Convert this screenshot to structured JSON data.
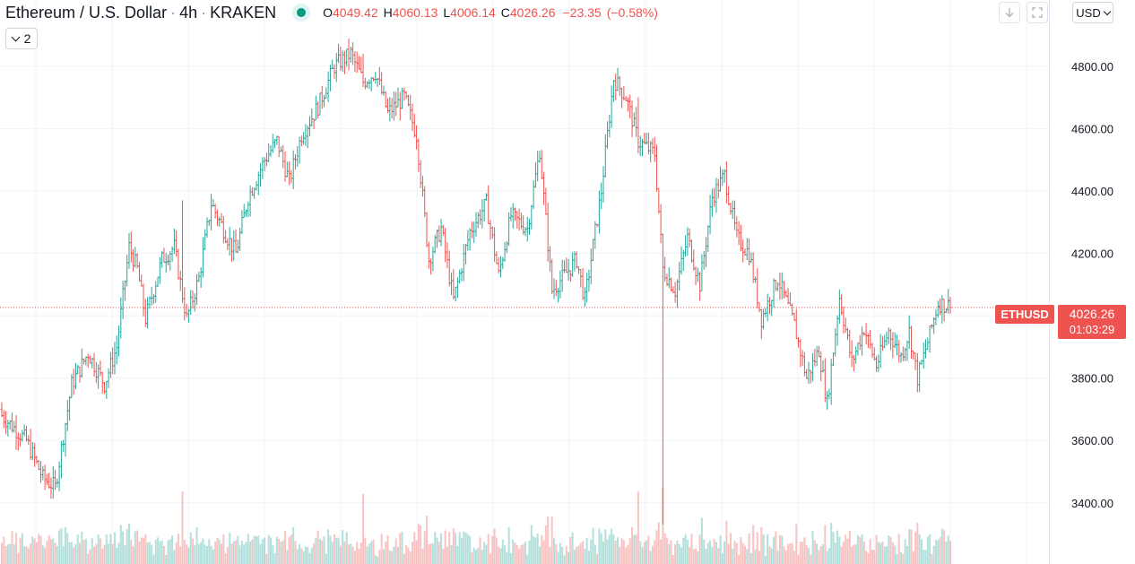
{
  "header": {
    "symbol": "Ethereum / U.S. Dollar",
    "interval": "4h",
    "exchange": "KRAKEN",
    "sep": "·"
  },
  "ohlc": {
    "o_label": "O",
    "o": "4049.42",
    "h_label": "H",
    "h": "4060.13",
    "l_label": "L",
    "l": "4006.14",
    "c_label": "C",
    "c": "4026.26",
    "change": "−23.35",
    "change_pct": "(−0.58%)"
  },
  "collapse_count": "2",
  "currency": "USD",
  "price_label": {
    "symbol": "ETHUSD",
    "price": "4026.26",
    "countdown": "01:03:29"
  },
  "colors": {
    "up": "#26a69a",
    "down": "#ef5350",
    "grid": "#f0f3fa",
    "text": "#131722"
  },
  "icons": [
    "market-open-icon",
    "download-icon",
    "fullscreen-icon",
    "chevron-down-icon"
  ],
  "chart_data": {
    "type": "ohlc",
    "symbol": "ETHUSD",
    "last_price": 4026.26,
    "y_ticks": [
      3400,
      3600,
      3800,
      4000,
      4200,
      4400,
      4600,
      4800
    ],
    "y_tick_labels": [
      "3400.00",
      "3600.00",
      "3800.00",
      "",
      "4200.00",
      "4400.00",
      "4600.00",
      "4800.00"
    ],
    "ylim": [
      3204,
      5012
    ],
    "grid": true,
    "waypoints": [
      [
        0,
        3680
      ],
      [
        12,
        3600
      ],
      [
        20,
        3480
      ],
      [
        26,
        3450
      ],
      [
        34,
        3780
      ],
      [
        42,
        3880
      ],
      [
        50,
        3780
      ],
      [
        56,
        3900
      ],
      [
        62,
        4220
      ],
      [
        66,
        4150
      ],
      [
        70,
        3990
      ],
      [
        78,
        4180
      ],
      [
        84,
        4220
      ],
      [
        90,
        3990
      ],
      [
        96,
        4120
      ],
      [
        102,
        4360
      ],
      [
        110,
        4250
      ],
      [
        114,
        4200
      ],
      [
        120,
        4380
      ],
      [
        128,
        4500
      ],
      [
        134,
        4560
      ],
      [
        140,
        4430
      ],
      [
        146,
        4580
      ],
      [
        154,
        4670
      ],
      [
        162,
        4800
      ],
      [
        170,
        4840
      ],
      [
        176,
        4750
      ],
      [
        182,
        4780
      ],
      [
        188,
        4650
      ],
      [
        196,
        4700
      ],
      [
        202,
        4580
      ],
      [
        208,
        4180
      ],
      [
        214,
        4280
      ],
      [
        220,
        4050
      ],
      [
        228,
        4270
      ],
      [
        236,
        4360
      ],
      [
        242,
        4130
      ],
      [
        248,
        4320
      ],
      [
        256,
        4280
      ],
      [
        262,
        4530
      ],
      [
        268,
        4080
      ],
      [
        274,
        4130
      ],
      [
        280,
        4180
      ],
      [
        284,
        4050
      ],
      [
        292,
        4400
      ],
      [
        298,
        4760
      ],
      [
        304,
        4700
      ],
      [
        310,
        4560
      ],
      [
        318,
        4520
      ],
      [
        322,
        4150
      ],
      [
        328,
        4080
      ],
      [
        334,
        4250
      ],
      [
        340,
        4100
      ],
      [
        346,
        4380
      ],
      [
        352,
        4450
      ],
      [
        358,
        4250
      ],
      [
        364,
        4200
      ],
      [
        370,
        3990
      ],
      [
        378,
        4120
      ],
      [
        386,
        3970
      ],
      [
        392,
        3800
      ],
      [
        398,
        3890
      ],
      [
        402,
        3720
      ],
      [
        408,
        4060
      ],
      [
        414,
        3850
      ],
      [
        420,
        3960
      ],
      [
        426,
        3840
      ],
      [
        432,
        3950
      ],
      [
        438,
        3870
      ],
      [
        442,
        3950
      ],
      [
        446,
        3800
      ],
      [
        452,
        3940
      ],
      [
        456,
        4040
      ],
      [
        462,
        4030
      ]
    ],
    "spikes": [
      [
        322,
        3330
      ],
      [
        310,
        4700
      ],
      [
        176,
        4840
      ],
      [
        88,
        4370
      ]
    ]
  }
}
